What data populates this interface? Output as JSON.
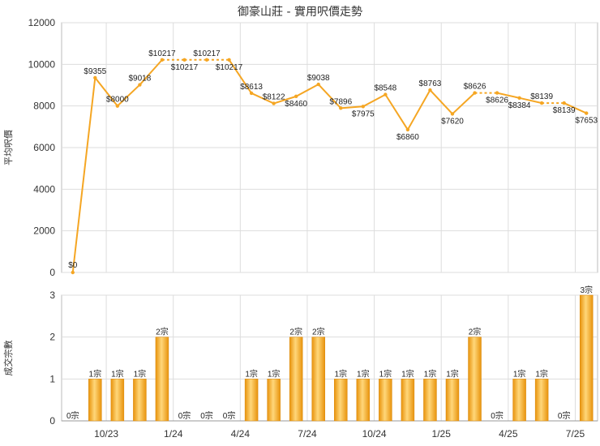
{
  "chart_data": [
    {
      "type": "line",
      "title": "御豪山莊 - 實用呎價走勢",
      "ylabel": "平均呎價",
      "ylim": [
        0,
        12000
      ],
      "yticks": [
        0,
        2000,
        4000,
        6000,
        8000,
        10000,
        12000
      ],
      "x_tick_labels": [
        "10/23",
        "1/24",
        "4/24",
        "7/24",
        "10/24",
        "1/25",
        "4/25",
        "7/25"
      ],
      "series": [
        {
          "color": "#f5a623",
          "values": [
            0,
            9355,
            8000,
            9018,
            10217,
            10217,
            10217,
            10217,
            8613,
            8122,
            8460,
            9038,
            7896,
            7975,
            8548,
            6860,
            8763,
            7620,
            8626,
            8626,
            8384,
            8139,
            8139,
            7653
          ],
          "labels": [
            "$0",
            "$9355",
            "$8000",
            "$9018",
            "$10217",
            "$10217",
            "$10217",
            "$10217",
            "$8613",
            "$8122",
            "$8460",
            "$9038",
            "$7896",
            "$7975",
            "$8548",
            "$6860",
            "$8763",
            "$7620",
            "$8626",
            "$8626",
            "$8384",
            "$8139",
            "$8139",
            "$7653"
          ]
        }
      ],
      "grid": true,
      "watermark": "利一"
    },
    {
      "type": "bar",
      "ylabel": "成交宗數",
      "ylim": [
        0,
        3
      ],
      "yticks": [
        0,
        1,
        2,
        3
      ],
      "x_tick_labels": [
        "10/23",
        "1/24",
        "4/24",
        "7/24",
        "10/24",
        "1/25",
        "4/25",
        "7/25"
      ],
      "series": [
        {
          "color": "#f5a623",
          "values": [
            0,
            1,
            1,
            1,
            2,
            0,
            0,
            0,
            1,
            1,
            2,
            2,
            1,
            1,
            1,
            1,
            1,
            1,
            2,
            0,
            1,
            1,
            0,
            3
          ],
          "labels": [
            "0宗",
            "1宗",
            "1宗",
            "1宗",
            "2宗",
            "0宗",
            "0宗",
            "0宗",
            "1宗",
            "1宗",
            "2宗",
            "2宗",
            "1宗",
            "1宗",
            "1宗",
            "1宗",
            "1宗",
            "1宗",
            "2宗",
            "0宗",
            "1宗",
            "1宗",
            "0宗",
            "3宗"
          ]
        }
      ],
      "grid": true,
      "watermark": "利一"
    }
  ]
}
